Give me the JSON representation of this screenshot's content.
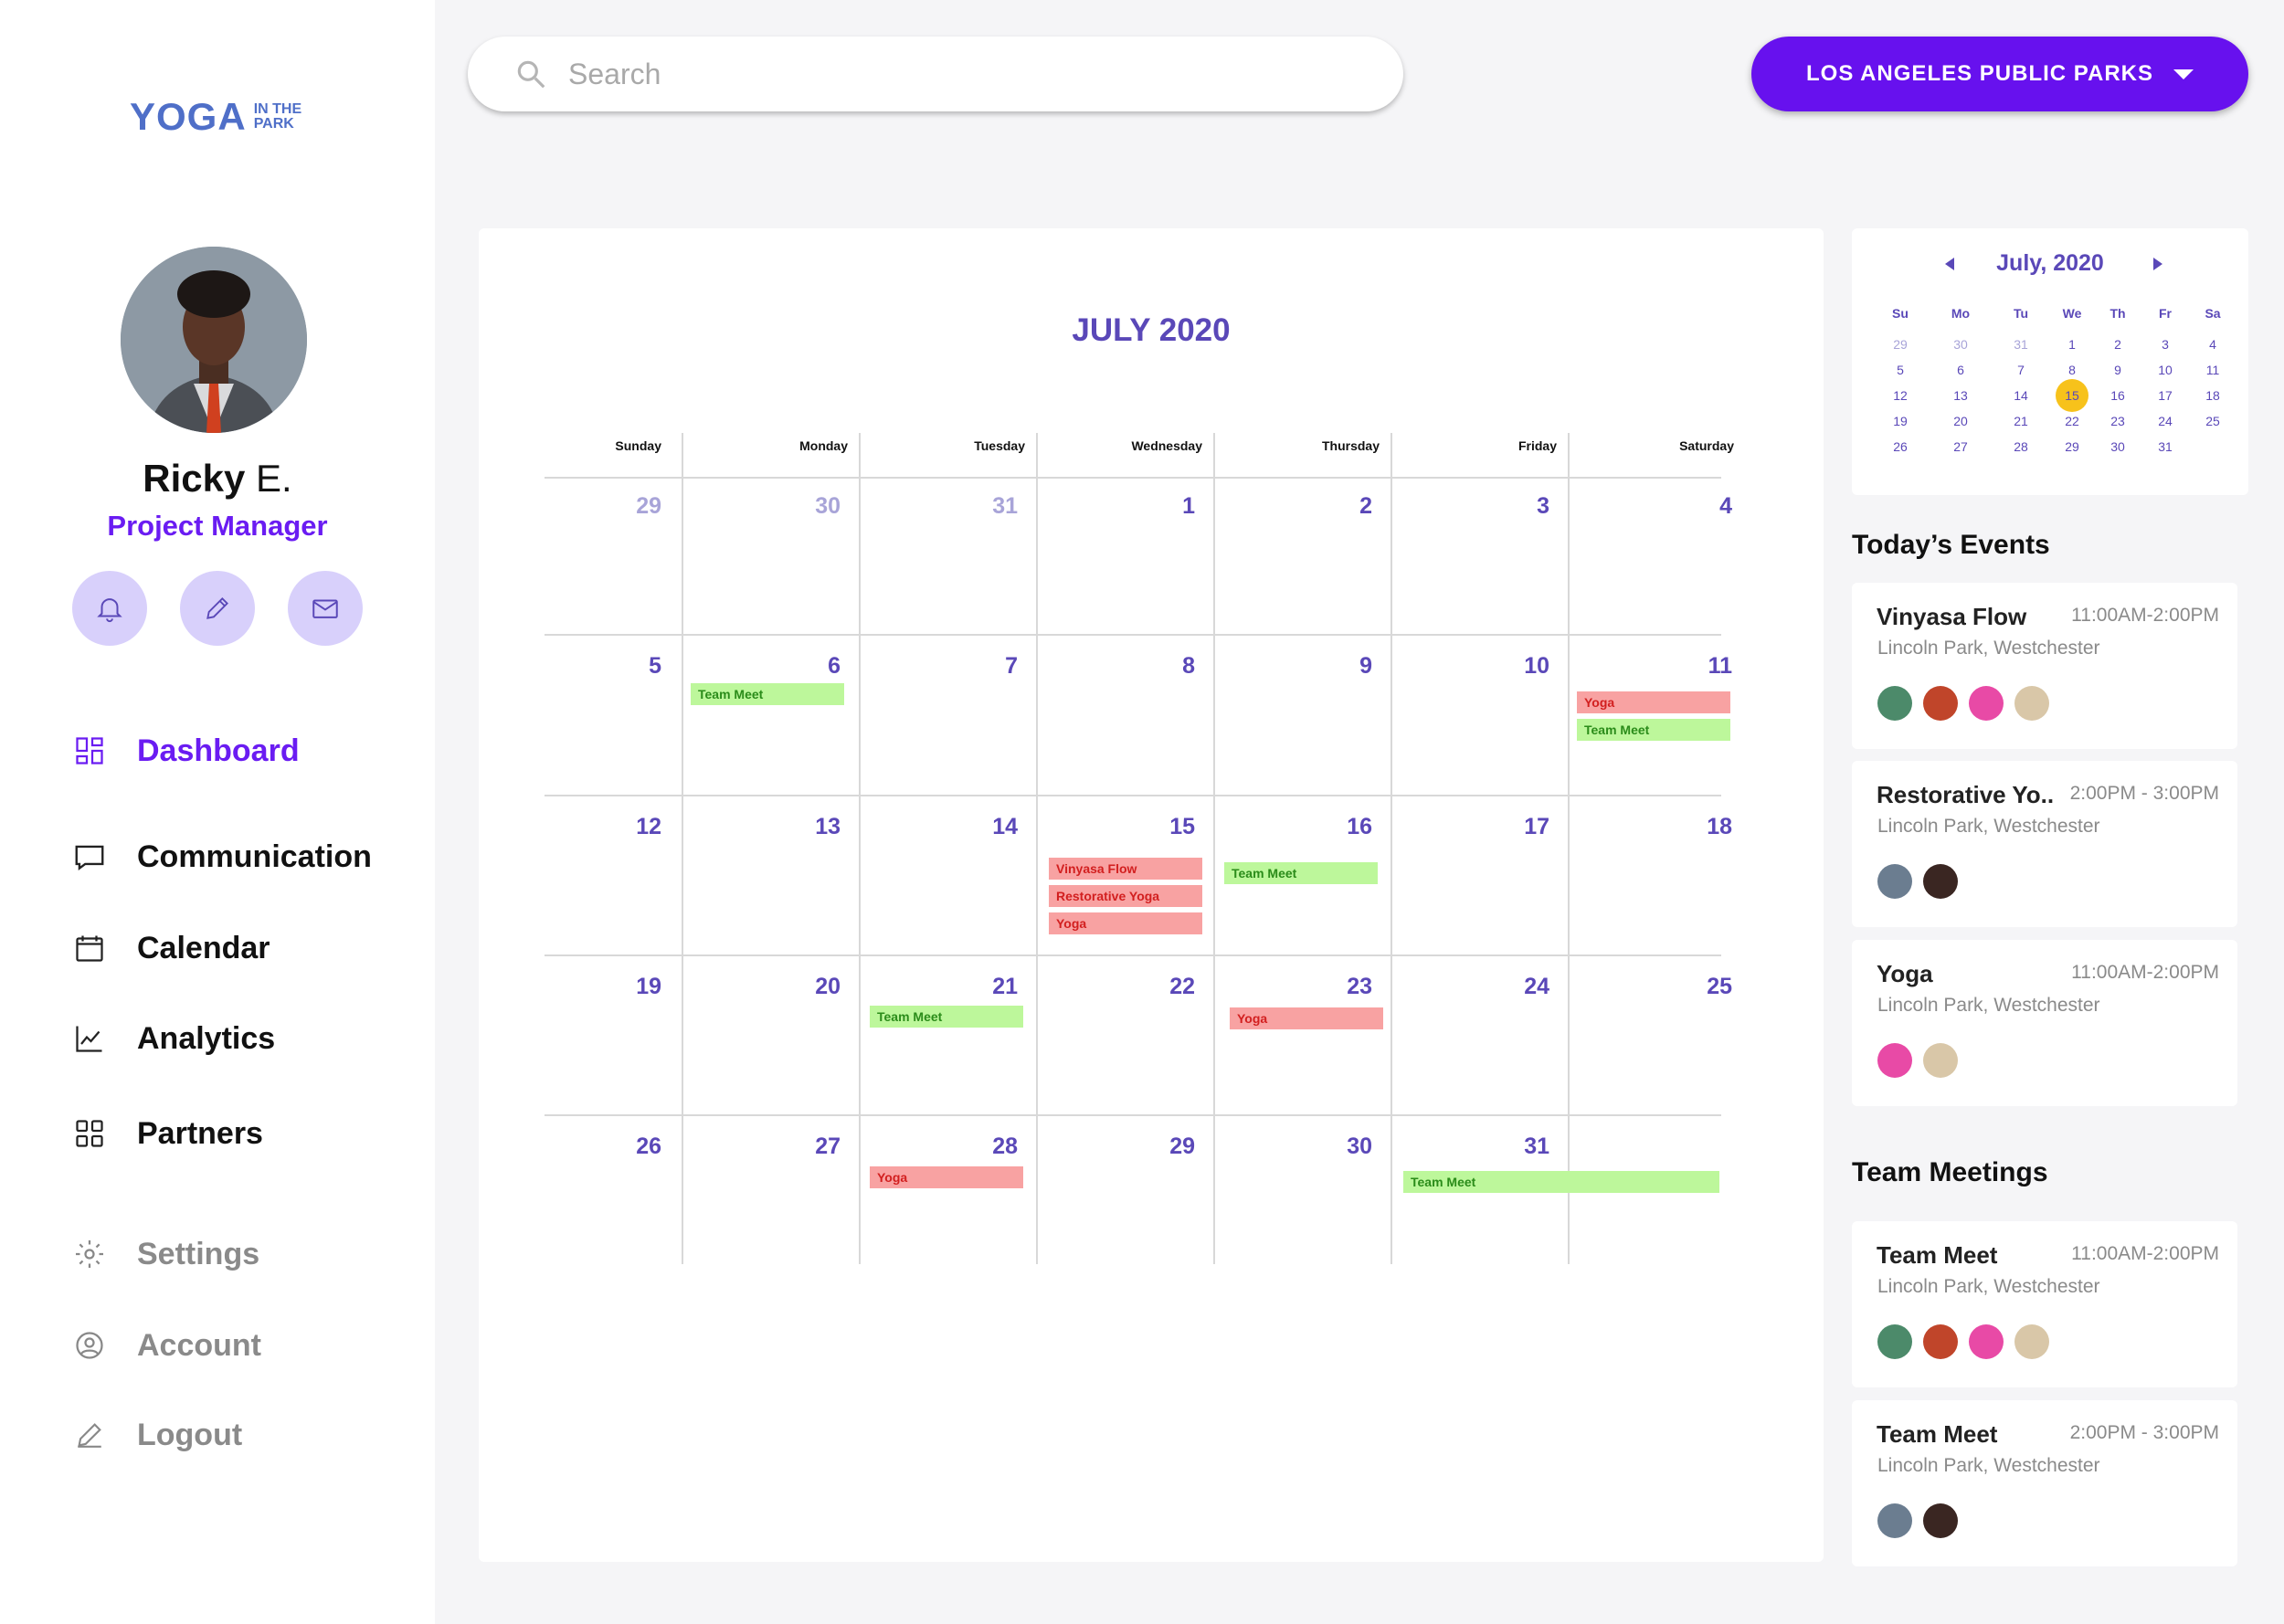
{
  "brand": {
    "logo_main": "YOGA",
    "logo_line1": "IN THE",
    "logo_line2": "PARK"
  },
  "user": {
    "first_name": "Ricky",
    "last_initial": "E.",
    "role": "Project Manager"
  },
  "nav": {
    "items": [
      {
        "label": "Dashboard",
        "icon": "dashboard-icon",
        "active": true
      },
      {
        "label": "Communication",
        "icon": "chat-icon"
      },
      {
        "label": "Calendar",
        "icon": "calendar-icon"
      },
      {
        "label": "Analytics",
        "icon": "analytics-icon"
      },
      {
        "label": "Partners",
        "icon": "partners-icon"
      },
      {
        "label": "Settings",
        "icon": "gear-icon"
      },
      {
        "label": "Account",
        "icon": "account-icon"
      },
      {
        "label": "Logout",
        "icon": "pencil-icon"
      }
    ]
  },
  "search": {
    "placeholder": "Search"
  },
  "location_dropdown": {
    "label": "LOS ANGELES PUBLIC PARKS"
  },
  "calendar": {
    "title": "JULY 2020",
    "weekdays": [
      "Sunday",
      "Monday",
      "Tuesday",
      "Wednesday",
      "Thursday",
      "Friday",
      "Saturday"
    ],
    "weeks": [
      [
        "29",
        "30",
        "31",
        "1",
        "2",
        "3",
        "4"
      ],
      [
        "5",
        "6",
        "7",
        "8",
        "9",
        "10",
        "11"
      ],
      [
        "12",
        "13",
        "14",
        "15",
        "16",
        "17",
        "18"
      ],
      [
        "19",
        "20",
        "21",
        "22",
        "23",
        "24",
        "25"
      ],
      [
        "26",
        "27",
        "28",
        "29",
        "30",
        "31",
        ""
      ]
    ],
    "events": [
      {
        "label": "Team Meet",
        "type": "green"
      },
      {
        "label": "Yoga",
        "type": "red"
      },
      {
        "label": "Team Meet",
        "type": "green"
      },
      {
        "label": "Vinyasa Flow",
        "type": "red"
      },
      {
        "label": "Restorative Yoga",
        "type": "red"
      },
      {
        "label": "Yoga",
        "type": "red"
      },
      {
        "label": "Team Meet",
        "type": "green"
      },
      {
        "label": "Team Meet",
        "type": "green"
      },
      {
        "label": "Yoga",
        "type": "red"
      },
      {
        "label": "Yoga",
        "type": "red"
      },
      {
        "label": "Team Meet",
        "type": "green"
      }
    ]
  },
  "mini_calendar": {
    "title": "July, 2020",
    "headers": [
      "Su",
      "Mo",
      "Tu",
      "We",
      "Th",
      "Fr",
      "Sa"
    ],
    "rows": [
      [
        "29",
        "30",
        "31",
        "1",
        "2",
        "3",
        "4"
      ],
      [
        "5",
        "6",
        "7",
        "8",
        "9",
        "10",
        "11"
      ],
      [
        "12",
        "13",
        "14",
        "15",
        "16",
        "17",
        "18"
      ],
      [
        "19",
        "20",
        "21",
        "22",
        "23",
        "24",
        "25"
      ],
      [
        "26",
        "27",
        "28",
        "29",
        "30",
        "31",
        ""
      ]
    ],
    "selected": "15"
  },
  "todays_events": {
    "title": "Today’s Events",
    "items": [
      {
        "title": "Vinyasa Flow",
        "time": "11:00AM-2:00PM",
        "location": "Lincoln Park, Westchester"
      },
      {
        "title": "Restorative Yo..",
        "time": "2:00PM - 3:00PM",
        "location": "Lincoln Park, Westchester"
      },
      {
        "title": "Yoga",
        "time": "11:00AM-2:00PM",
        "location": "Lincoln Park, Westchester"
      }
    ]
  },
  "team_meetings": {
    "title": "Team Meetings",
    "items": [
      {
        "title": "Team Meet",
        "time": "11:00AM-2:00PM",
        "location": "Lincoln Park, Westchester"
      },
      {
        "title": "Team Meet",
        "time": "2:00PM - 3:00PM",
        "location": "Lincoln Park, Westchester"
      }
    ]
  },
  "colors": {
    "accent": "#6711ee",
    "calendar_text": "#5a48b8",
    "event_green": "#bdf79b",
    "event_red": "#f8a2a2",
    "today_highlight": "#f7c21b"
  }
}
